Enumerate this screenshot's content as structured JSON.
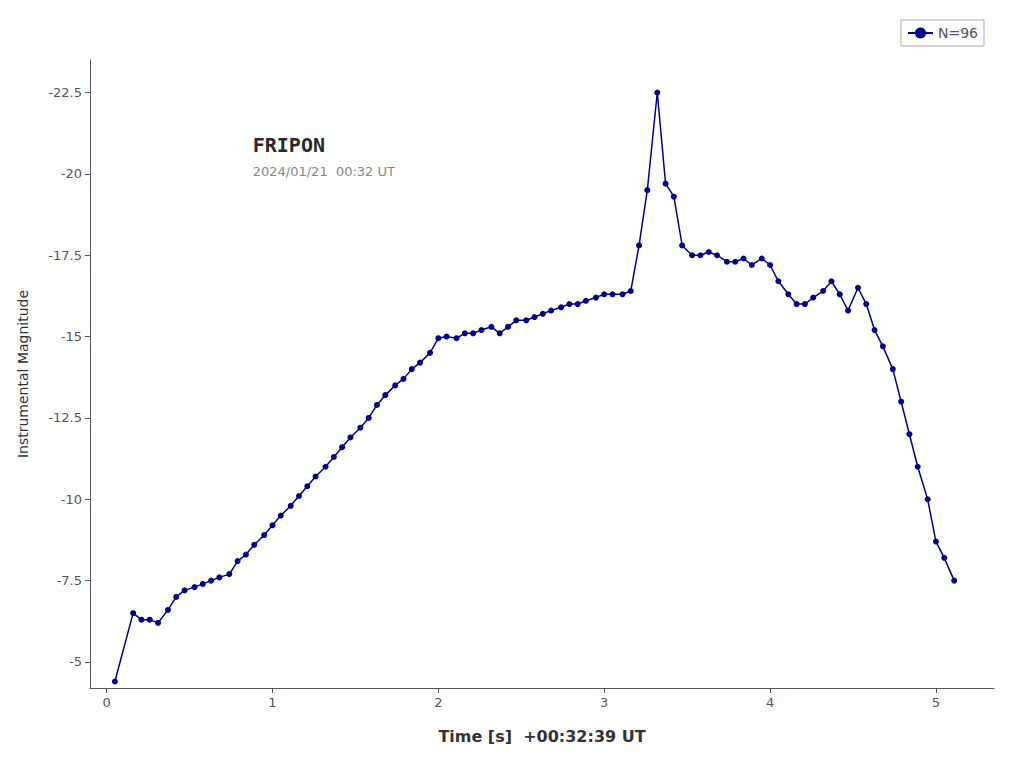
{
  "chart_data": {
    "type": "line",
    "xlabel": "Time [s]  +00:32:39 UT",
    "ylabel": "Instrumental Magnitude",
    "x": [
      0.05,
      0.16,
      0.21,
      0.26,
      0.31,
      0.37,
      0.42,
      0.47,
      0.53,
      0.58,
      0.63,
      0.68,
      0.74,
      0.79,
      0.84,
      0.89,
      0.95,
      1.0,
      1.05,
      1.11,
      1.16,
      1.21,
      1.26,
      1.32,
      1.37,
      1.42,
      1.47,
      1.53,
      1.58,
      1.63,
      1.68,
      1.74,
      1.79,
      1.84,
      1.89,
      1.95,
      2.0,
      2.05,
      2.11,
      2.16,
      2.21,
      2.26,
      2.32,
      2.37,
      2.42,
      2.47,
      2.53,
      2.58,
      2.63,
      2.68,
      2.74,
      2.79,
      2.84,
      2.89,
      2.95,
      3.0,
      3.05,
      3.11,
      3.16,
      3.21,
      3.26,
      3.32,
      3.37,
      3.42,
      3.47,
      3.53,
      3.58,
      3.63,
      3.68,
      3.74,
      3.79,
      3.84,
      3.89,
      3.95,
      4.0,
      4.05,
      4.11,
      4.16,
      4.21,
      4.26,
      4.32,
      4.37,
      4.42,
      4.47,
      4.53,
      4.58,
      4.63,
      4.68,
      4.74,
      4.79,
      4.84,
      4.89,
      4.95,
      5.0,
      5.05,
      5.11
    ],
    "series": [
      {
        "name": "N=96",
        "color": "#00008B",
        "marker": "circle",
        "line_style": "solid",
        "values": [
          -4.4,
          -6.5,
          -6.3,
          -6.3,
          -6.2,
          -6.6,
          -7.0,
          -7.2,
          -7.3,
          -7.4,
          -7.5,
          -7.6,
          -7.7,
          -8.1,
          -8.3,
          -8.6,
          -8.9,
          -9.2,
          -9.5,
          -9.8,
          -10.1,
          -10.4,
          -10.7,
          -11.0,
          -11.3,
          -11.6,
          -11.9,
          -12.2,
          -12.5,
          -12.9,
          -13.2,
          -13.5,
          -13.7,
          -14.0,
          -14.2,
          -14.5,
          -14.95,
          -15.0,
          -14.95,
          -15.1,
          -15.1,
          -15.2,
          -15.3,
          -15.1,
          -15.3,
          -15.5,
          -15.5,
          -15.6,
          -15.7,
          -15.8,
          -15.9,
          -16.0,
          -16.0,
          -16.1,
          -16.2,
          -16.3,
          -16.3,
          -16.3,
          -16.4,
          -17.8,
          -19.5,
          -22.5,
          -19.7,
          -19.3,
          -17.8,
          -17.5,
          -17.5,
          -17.6,
          -17.5,
          -17.3,
          -17.3,
          -17.4,
          -17.2,
          -17.4,
          -17.2,
          -16.7,
          -16.3,
          -16.0,
          -16.0,
          -16.2,
          -16.4,
          -16.7,
          -16.3,
          -15.8,
          -16.5,
          -16.0,
          -15.2,
          -14.7,
          -14.0,
          -13.0,
          -12.0,
          -11.0,
          -10.0,
          -8.7,
          -8.2,
          -7.5
        ]
      }
    ],
    "xlim": [
      -0.1,
      5.35
    ],
    "xticks": [
      0,
      1,
      2,
      3,
      4,
      5
    ],
    "ylim": [
      -4.2,
      -23.5
    ],
    "yticks": [
      -22.5,
      -20.0,
      -17.5,
      -15.0,
      -12.5,
      -10.0,
      -7.5,
      -5.0
    ],
    "grid": false,
    "legend": "upper right",
    "annotations": [
      {
        "text": "FRIPON",
        "color": "#2a2a2a"
      },
      {
        "text": "2024/01/21  00:32 UT",
        "color": "#888888"
      }
    ]
  }
}
